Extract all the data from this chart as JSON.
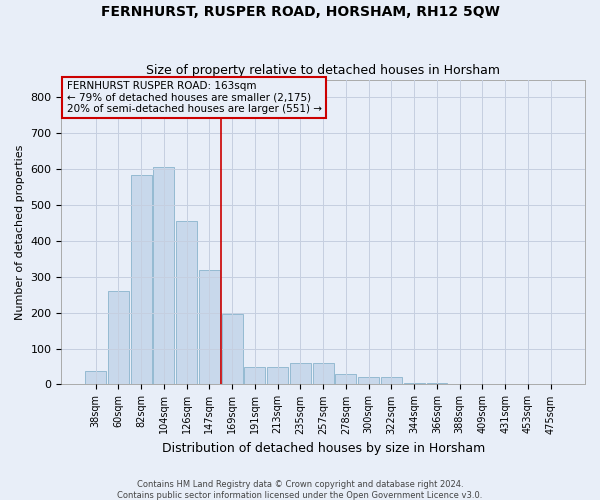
{
  "title": "FERNHURST, RUSPER ROAD, HORSHAM, RH12 5QW",
  "subtitle": "Size of property relative to detached houses in Horsham",
  "xlabel": "Distribution of detached houses by size in Horsham",
  "ylabel": "Number of detached properties",
  "footer_line1": "Contains HM Land Registry data © Crown copyright and database right 2024.",
  "footer_line2": "Contains public sector information licensed under the Open Government Licence v3.0.",
  "categories": [
    "38sqm",
    "60sqm",
    "82sqm",
    "104sqm",
    "126sqm",
    "147sqm",
    "169sqm",
    "191sqm",
    "213sqm",
    "235sqm",
    "257sqm",
    "278sqm",
    "300sqm",
    "322sqm",
    "344sqm",
    "366sqm",
    "388sqm",
    "409sqm",
    "431sqm",
    "453sqm",
    "475sqm"
  ],
  "values": [
    38,
    260,
    585,
    605,
    455,
    320,
    195,
    50,
    50,
    60,
    60,
    30,
    20,
    20,
    5,
    5,
    2,
    2,
    0,
    0,
    2
  ],
  "bar_color": "#c8d8eb",
  "bar_edge_color": "#8ab4cc",
  "grid_color": "#c5cfe0",
  "background_color": "#e8eef8",
  "vline_x": 5.5,
  "vline_color": "#cc0000",
  "annotation_text": "FERNHURST RUSPER ROAD: 163sqm\n← 79% of detached houses are smaller (2,175)\n20% of semi-detached houses are larger (551) →",
  "annotation_box_color": "#cc0000",
  "ylim": [
    0,
    850
  ],
  "yticks": [
    0,
    100,
    200,
    300,
    400,
    500,
    600,
    700,
    800
  ]
}
